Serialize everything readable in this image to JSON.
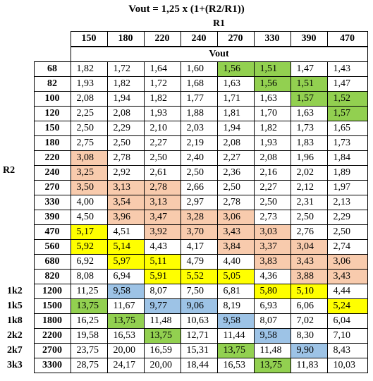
{
  "title": "Vout = 1,25 x (1+(R2/R1))",
  "r1_label": "R1",
  "r2_label": "R2",
  "vout_label": "Vout",
  "r1_values": [
    "150",
    "180",
    "220",
    "240",
    "270",
    "330",
    "390",
    "470"
  ],
  "colors": {
    "green": "#92d050",
    "salmon": "#f8cbad",
    "yellow": "#ffff00",
    "blue": "#9dc3e6"
  },
  "rows": [
    {
      "label": "",
      "r2": "68",
      "v": [
        "1,82",
        "1,72",
        "1,64",
        "1,60",
        "1,56",
        "1,51",
        "1,47",
        "1,43"
      ],
      "hl": [
        "",
        "",
        "",
        "",
        "gr",
        "gr",
        "",
        ""
      ]
    },
    {
      "label": "",
      "r2": "82",
      "v": [
        "1,93",
        "1,82",
        "1,72",
        "1,68",
        "1,63",
        "1,56",
        "1,51",
        "1,47"
      ],
      "hl": [
        "",
        "",
        "",
        "",
        "",
        "gr",
        "gr",
        ""
      ]
    },
    {
      "label": "",
      "r2": "100",
      "v": [
        "2,08",
        "1,94",
        "1,82",
        "1,77",
        "1,71",
        "1,63",
        "1,57",
        "1,52"
      ],
      "hl": [
        "",
        "",
        "",
        "",
        "",
        "",
        "gr",
        "gr"
      ]
    },
    {
      "label": "",
      "r2": "120",
      "v": [
        "2,25",
        "2,08",
        "1,93",
        "1,88",
        "1,81",
        "1,70",
        "1,63",
        "1,57"
      ],
      "hl": [
        "",
        "",
        "",
        "",
        "",
        "",
        "",
        "gr"
      ]
    },
    {
      "label": "",
      "r2": "150",
      "v": [
        "2,50",
        "2,29",
        "2,10",
        "2,03",
        "1,94",
        "1,82",
        "1,73",
        "1,65"
      ],
      "hl": [
        "",
        "",
        "",
        "",
        "",
        "",
        "",
        ""
      ]
    },
    {
      "label": "",
      "r2": "180",
      "v": [
        "2,75",
        "2,50",
        "2,27",
        "2,19",
        "2,08",
        "1,93",
        "1,83",
        "1,73"
      ],
      "hl": [
        "",
        "",
        "",
        "",
        "",
        "",
        "",
        ""
      ]
    },
    {
      "label": "",
      "r2": "220",
      "v": [
        "3,08",
        "2,78",
        "2,50",
        "2,40",
        "2,27",
        "2,08",
        "1,96",
        "1,84"
      ],
      "hl": [
        "pk",
        "",
        "",
        "",
        "",
        "",
        "",
        ""
      ]
    },
    {
      "label": "",
      "r2": "240",
      "v": [
        "3,25",
        "2,92",
        "2,61",
        "2,50",
        "2,36",
        "2,16",
        "2,02",
        "1,89"
      ],
      "hl": [
        "pk",
        "",
        "",
        "",
        "",
        "",
        "",
        ""
      ]
    },
    {
      "label": "",
      "r2": "270",
      "v": [
        "3,50",
        "3,13",
        "2,78",
        "2,66",
        "2,50",
        "2,27",
        "2,12",
        "1,97"
      ],
      "hl": [
        "pk",
        "pk",
        "pk",
        "",
        "",
        "",
        "",
        ""
      ]
    },
    {
      "label": "",
      "r2": "330",
      "v": [
        "4,00",
        "3,54",
        "3,13",
        "2,97",
        "2,78",
        "2,50",
        "2,31",
        "2,13"
      ],
      "hl": [
        "",
        "pk",
        "pk",
        "",
        "",
        "",
        "",
        ""
      ]
    },
    {
      "label": "",
      "r2": "390",
      "v": [
        "4,50",
        "3,96",
        "3,47",
        "3,28",
        "3,06",
        "2,73",
        "2,50",
        "2,29"
      ],
      "hl": [
        "",
        "pk",
        "pk",
        "pk",
        "pk",
        "",
        "",
        ""
      ]
    },
    {
      "label": "",
      "r2": "470",
      "v": [
        "5,17",
        "4,51",
        "3,92",
        "3,70",
        "3,43",
        "3,03",
        "2,76",
        "2,50"
      ],
      "hl": [
        "yl",
        "",
        "pk",
        "pk",
        "pk",
        "pk",
        "",
        ""
      ]
    },
    {
      "label": "",
      "r2": "560",
      "v": [
        "5,92",
        "5,14",
        "4,43",
        "4,17",
        "3,84",
        "3,37",
        "3,04",
        "2,74"
      ],
      "hl": [
        "yl",
        "yl",
        "",
        "",
        "pk",
        "pk",
        "pk",
        ""
      ]
    },
    {
      "label": "",
      "r2": "680",
      "v": [
        "6,92",
        "5,97",
        "5,11",
        "4,79",
        "4,40",
        "3,83",
        "3,43",
        "3,06"
      ],
      "hl": [
        "",
        "yl",
        "yl",
        "",
        "",
        "pk",
        "pk",
        "pk"
      ]
    },
    {
      "label": "",
      "r2": "820",
      "v": [
        "8,08",
        "6,94",
        "5,91",
        "5,52",
        "5,05",
        "4,36",
        "3,88",
        "3,43"
      ],
      "hl": [
        "",
        "",
        "yl",
        "yl",
        "yl",
        "",
        "pk",
        "pk"
      ]
    },
    {
      "label": "1k2",
      "r2": "1200",
      "v": [
        "11,25",
        "9,58",
        "8,07",
        "7,50",
        "6,81",
        "5,80",
        "5,10",
        "4,44"
      ],
      "hl": [
        "",
        "bl",
        "",
        "",
        "",
        "yl",
        "yl",
        ""
      ]
    },
    {
      "label": "1k5",
      "r2": "1500",
      "v": [
        "13,75",
        "11,67",
        "9,77",
        "9,06",
        "8,19",
        "6,93",
        "6,06",
        "5,24"
      ],
      "hl": [
        "gr",
        "",
        "bl",
        "bl",
        "",
        "",
        "",
        "yl"
      ]
    },
    {
      "label": "1k8",
      "r2": "1800",
      "v": [
        "16,25",
        "13,75",
        "11,48",
        "10,63",
        "9,58",
        "8,07",
        "7,02",
        "6,04"
      ],
      "hl": [
        "",
        "gr",
        "",
        "",
        "bl",
        "",
        "",
        ""
      ]
    },
    {
      "label": "2k2",
      "r2": "2200",
      "v": [
        "19,58",
        "16,53",
        "13,75",
        "12,71",
        "11,44",
        "9,58",
        "8,30",
        "7,10"
      ],
      "hl": [
        "",
        "",
        "gr",
        "",
        "",
        "bl",
        "",
        ""
      ]
    },
    {
      "label": "2k7",
      "r2": "2700",
      "v": [
        "23,75",
        "20,00",
        "16,59",
        "15,31",
        "13,75",
        "11,48",
        "9,90",
        "8,43"
      ],
      "hl": [
        "",
        "",
        "",
        "",
        "gr",
        "",
        "bl",
        ""
      ]
    },
    {
      "label": "3k3",
      "r2": "3300",
      "v": [
        "28,75",
        "24,17",
        "20,00",
        "18,44",
        "16,53",
        "13,75",
        "11,83",
        "10,03"
      ],
      "hl": [
        "",
        "",
        "",
        "",
        "",
        "gr",
        "",
        ""
      ]
    }
  ]
}
